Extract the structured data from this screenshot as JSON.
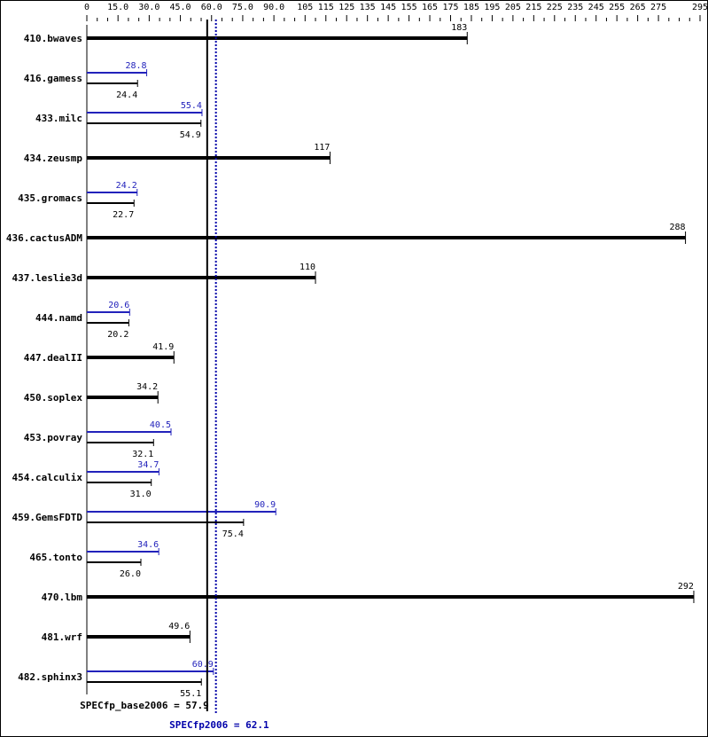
{
  "chart_data": {
    "type": "bar",
    "orientation": "horizontal",
    "xlim": [
      0,
      295
    ],
    "x_tick_labels": [
      "0",
      "15.0",
      "30.0",
      "45.0",
      "60.0",
      "75.0",
      "90.0",
      "105",
      "115",
      "125",
      "135",
      "145",
      "155",
      "165",
      "175",
      "185",
      "195",
      "205",
      "215",
      "225",
      "235",
      "245",
      "255",
      "265",
      "275",
      "295"
    ],
    "x_tick_values": [
      0,
      15,
      30,
      45,
      60,
      75,
      90,
      105,
      115,
      125,
      135,
      145,
      155,
      165,
      175,
      185,
      195,
      205,
      215,
      225,
      235,
      245,
      255,
      265,
      275,
      295
    ],
    "categories": [
      "410.bwaves",
      "416.gamess",
      "433.milc",
      "434.zeusmp",
      "435.gromacs",
      "436.cactusADM",
      "437.leslie3d",
      "444.namd",
      "447.dealII",
      "450.soplex",
      "453.povray",
      "454.calculix",
      "459.GemsFDTD",
      "465.tonto",
      "470.lbm",
      "481.wrf",
      "482.sphinx3"
    ],
    "series": [
      {
        "key": "peak",
        "values": [
          null,
          28.8,
          55.4,
          null,
          24.2,
          null,
          null,
          20.6,
          null,
          null,
          40.5,
          34.7,
          90.9,
          34.6,
          null,
          null,
          60.9
        ]
      },
      {
        "key": "base",
        "values": [
          183,
          24.4,
          54.9,
          117,
          22.7,
          288,
          110,
          20.2,
          41.9,
          34.2,
          32.1,
          31.0,
          75.4,
          26.0,
          292,
          49.6,
          55.1
        ]
      }
    ],
    "value_labels": {
      "peak": [
        null,
        "28.8",
        "55.4",
        null,
        "24.2",
        null,
        null,
        "20.6",
        null,
        null,
        "40.5",
        "34.7",
        "90.9",
        "34.6",
        null,
        null,
        "60.9"
      ],
      "base": [
        "183",
        "24.4",
        "54.9",
        "117",
        "22.7",
        "288",
        "110",
        "20.2",
        "41.9",
        "34.2",
        "32.1",
        "31.0",
        "75.4",
        "26.0",
        "292",
        "49.6",
        "55.1"
      ]
    },
    "reference_lines": [
      {
        "label": "SPECfp_base2006 = 57.9",
        "value": 57.9,
        "color": "#000000",
        "style": "solid"
      },
      {
        "label": "SPECfp2006 = 62.1",
        "value": 62.1,
        "color": "#0000aa",
        "style": "dotted"
      }
    ],
    "colors": {
      "base": "#000000",
      "peak": "#2222bb"
    }
  }
}
